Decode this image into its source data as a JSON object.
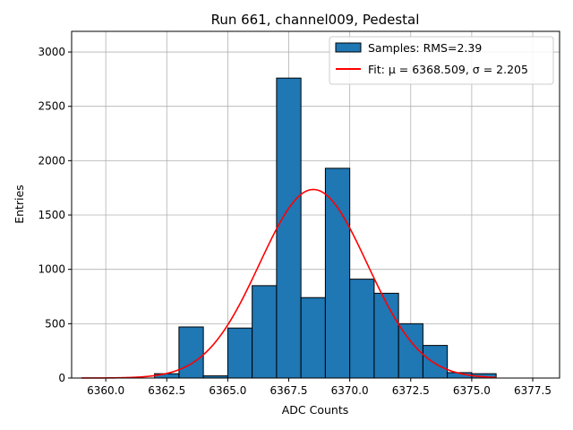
{
  "chart_data": {
    "type": "bar",
    "title": "Run 661, channel009, Pedestal",
    "xlabel": "ADC Counts",
    "ylabel": "Entries",
    "xlim": [
      6358.6,
      6378.6
    ],
    "ylim": [
      0,
      3190
    ],
    "xticks": [
      6360.0,
      6362.5,
      6365.0,
      6367.5,
      6370.0,
      6372.5,
      6375.0,
      6377.5
    ],
    "xtick_labels": [
      "6360.0",
      "6362.5",
      "6365.0",
      "6367.5",
      "6370.0",
      "6372.5",
      "6375.0",
      "6377.5"
    ],
    "yticks": [
      0,
      500,
      1000,
      1500,
      2000,
      2500,
      3000
    ],
    "ytick_labels": [
      "0",
      "500",
      "1000",
      "1500",
      "2000",
      "2500",
      "3000"
    ],
    "grid": true,
    "legend_position": "top-right",
    "histogram": {
      "name": "Samples: RMS=2.39",
      "color": "#1f77b4",
      "bin_edges": [
        6359,
        6360,
        6361,
        6362,
        6363,
        6364,
        6365,
        6366,
        6367,
        6368,
        6369,
        6370,
        6371,
        6372,
        6373,
        6374,
        6375,
        6376
      ],
      "counts": [
        0,
        0,
        0,
        40,
        470,
        20,
        460,
        850,
        2760,
        740,
        1930,
        910,
        780,
        500,
        300,
        50,
        40
      ]
    },
    "fit": {
      "name": "Fit: μ = 6368.509, σ = 2.205",
      "color": "#ff0000",
      "mu": 6368.509,
      "sigma": 2.205,
      "amplitude": 1735,
      "x_range": [
        6359,
        6376
      ]
    }
  }
}
